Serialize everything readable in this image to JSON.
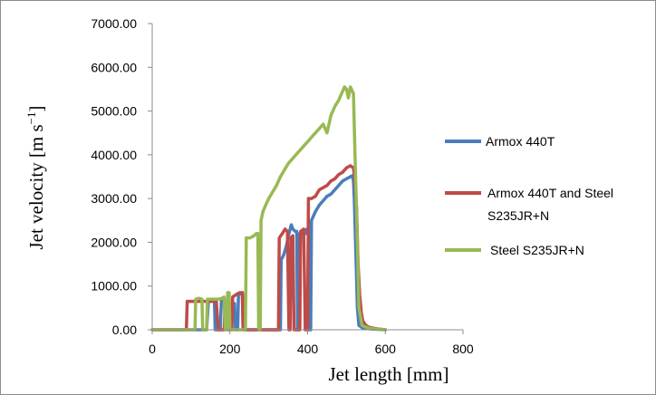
{
  "chart_data": {
    "type": "line",
    "title": "",
    "xlabel": "Jet length [mm]",
    "ylabel_main": "Jet velocity [m s",
    "ylabel_sup": "−1",
    "ylabel_end": "]",
    "xlim": [
      0,
      800
    ],
    "ylim": [
      0,
      7000
    ],
    "xticks": [
      0,
      200,
      400,
      600,
      800
    ],
    "xtick_labels": [
      "0",
      "200",
      "400",
      "600",
      "800"
    ],
    "yticks": [
      0,
      1000,
      2000,
      3000,
      4000,
      5000,
      6000,
      7000
    ],
    "ytick_labels": [
      "0.00",
      "1000.00",
      "2000.00",
      "3000.00",
      "4000.00",
      "5000.00",
      "6000.00",
      "7000.00"
    ],
    "grid": false,
    "legend_position": "right",
    "series": [
      {
        "name": "Armox 440T",
        "color": "#4a7ebb",
        "points": [
          [
            0,
            0
          ],
          [
            140,
            0
          ],
          [
            145,
            700
          ],
          [
            160,
            700
          ],
          [
            162,
            0
          ],
          [
            175,
            0
          ],
          [
            178,
            650
          ],
          [
            192,
            650
          ],
          [
            195,
            0
          ],
          [
            200,
            0
          ],
          [
            203,
            600
          ],
          [
            212,
            600
          ],
          [
            214,
            0
          ],
          [
            220,
            0
          ],
          [
            222,
            820
          ],
          [
            232,
            820
          ],
          [
            234,
            0
          ],
          [
            330,
            0
          ],
          [
            332,
            1600
          ],
          [
            338,
            1700
          ],
          [
            345,
            1900
          ],
          [
            352,
            2200
          ],
          [
            358,
            2400
          ],
          [
            362,
            2300
          ],
          [
            368,
            2250
          ],
          [
            372,
            2250
          ],
          [
            374,
            0
          ],
          [
            378,
            0
          ],
          [
            380,
            2200
          ],
          [
            395,
            2200
          ],
          [
            398,
            2300
          ],
          [
            402,
            2250
          ],
          [
            404,
            0
          ],
          [
            408,
            0
          ],
          [
            410,
            2500
          ],
          [
            415,
            2600
          ],
          [
            420,
            2700
          ],
          [
            430,
            2850
          ],
          [
            440,
            2950
          ],
          [
            450,
            3050
          ],
          [
            460,
            3100
          ],
          [
            470,
            3200
          ],
          [
            480,
            3300
          ],
          [
            490,
            3400
          ],
          [
            500,
            3450
          ],
          [
            510,
            3500
          ],
          [
            515,
            3520
          ],
          [
            518,
            3400
          ],
          [
            520,
            3000
          ],
          [
            525,
            1500
          ],
          [
            528,
            500
          ],
          [
            532,
            100
          ],
          [
            540,
            50
          ],
          [
            560,
            20
          ],
          [
            600,
            0
          ]
        ]
      },
      {
        "name": "Armox 440T and Steel S235JR+N",
        "color": "#be4b48",
        "points": [
          [
            0,
            0
          ],
          [
            88,
            0
          ],
          [
            90,
            650
          ],
          [
            100,
            650
          ],
          [
            110,
            650
          ],
          [
            120,
            650
          ],
          [
            130,
            650
          ],
          [
            140,
            650
          ],
          [
            150,
            650
          ],
          [
            165,
            650
          ],
          [
            170,
            0
          ],
          [
            185,
            0
          ],
          [
            188,
            650
          ],
          [
            198,
            650
          ],
          [
            200,
            0
          ],
          [
            205,
            0
          ],
          [
            207,
            750
          ],
          [
            215,
            800
          ],
          [
            225,
            850
          ],
          [
            232,
            850
          ],
          [
            234,
            0
          ],
          [
            325,
            0
          ],
          [
            327,
            2100
          ],
          [
            335,
            2200
          ],
          [
            342,
            2300
          ],
          [
            348,
            2250
          ],
          [
            352,
            0
          ],
          [
            355,
            0
          ],
          [
            357,
            2100
          ],
          [
            362,
            2150
          ],
          [
            365,
            0
          ],
          [
            380,
            0
          ],
          [
            382,
            2250
          ],
          [
            390,
            2300
          ],
          [
            394,
            0
          ],
          [
            400,
            0
          ],
          [
            402,
            3000
          ],
          [
            410,
            3000
          ],
          [
            420,
            3050
          ],
          [
            430,
            3200
          ],
          [
            440,
            3250
          ],
          [
            450,
            3300
          ],
          [
            460,
            3400
          ],
          [
            470,
            3450
          ],
          [
            480,
            3550
          ],
          [
            490,
            3600
          ],
          [
            500,
            3700
          ],
          [
            510,
            3750
          ],
          [
            518,
            3700
          ],
          [
            522,
            3400
          ],
          [
            526,
            2800
          ],
          [
            530,
            1500
          ],
          [
            534,
            800
          ],
          [
            538,
            400
          ],
          [
            542,
            200
          ],
          [
            550,
            100
          ],
          [
            560,
            50
          ],
          [
            580,
            20
          ],
          [
            600,
            0
          ]
        ]
      },
      {
        "name": "Steel S235JR+N",
        "color": "#98b954",
        "points": [
          [
            0,
            0
          ],
          [
            110,
            0
          ],
          [
            112,
            700
          ],
          [
            120,
            720
          ],
          [
            128,
            700
          ],
          [
            130,
            0
          ],
          [
            140,
            0
          ],
          [
            142,
            700
          ],
          [
            150,
            700
          ],
          [
            160,
            700
          ],
          [
            170,
            700
          ],
          [
            180,
            720
          ],
          [
            185,
            750
          ],
          [
            188,
            0
          ],
          [
            192,
            0
          ],
          [
            194,
            850
          ],
          [
            198,
            850
          ],
          [
            200,
            0
          ],
          [
            240,
            0
          ],
          [
            242,
            2100
          ],
          [
            252,
            2100
          ],
          [
            262,
            2150
          ],
          [
            268,
            2200
          ],
          [
            272,
            2200
          ],
          [
            274,
            0
          ],
          [
            278,
            0
          ],
          [
            280,
            2500
          ],
          [
            285,
            2700
          ],
          [
            292,
            2850
          ],
          [
            300,
            3000
          ],
          [
            310,
            3150
          ],
          [
            320,
            3300
          ],
          [
            330,
            3500
          ],
          [
            340,
            3650
          ],
          [
            350,
            3800
          ],
          [
            360,
            3900
          ],
          [
            370,
            4000
          ],
          [
            380,
            4100
          ],
          [
            390,
            4200
          ],
          [
            400,
            4300
          ],
          [
            410,
            4400
          ],
          [
            420,
            4500
          ],
          [
            430,
            4600
          ],
          [
            440,
            4700
          ],
          [
            445,
            4600
          ],
          [
            450,
            4500
          ],
          [
            455,
            4700
          ],
          [
            460,
            4900
          ],
          [
            470,
            5100
          ],
          [
            480,
            5250
          ],
          [
            490,
            5450
          ],
          [
            495,
            5550
          ],
          [
            500,
            5500
          ],
          [
            505,
            5300
          ],
          [
            510,
            5550
          ],
          [
            518,
            5400
          ],
          [
            522,
            4000
          ],
          [
            528,
            2000
          ],
          [
            532,
            500
          ],
          [
            540,
            100
          ],
          [
            560,
            30
          ],
          [
            600,
            0
          ]
        ]
      }
    ]
  }
}
